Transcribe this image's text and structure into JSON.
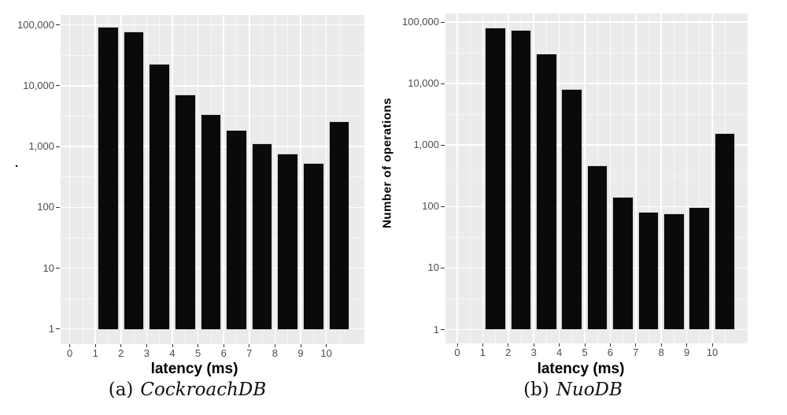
{
  "colors": {
    "background": "#ffffff",
    "panel": "#ebebeb",
    "grid": "#ffffff",
    "bar": "#0a0a0a",
    "tick_label": "#4d4d4d",
    "tick_mark": "#333333",
    "axis_title": "#000000"
  },
  "chart_data": [
    {
      "type": "bar",
      "caption": {
        "index": "(a)",
        "label": "CockroachDB"
      },
      "xlabel": "latency (ms)",
      "ylabel": ".",
      "yscale": "log10",
      "ylim": [
        1,
        100000
      ],
      "x_tick_labels": [
        "0",
        "1",
        "2",
        "3",
        "4",
        "5",
        "6",
        "7",
        "8",
        "9",
        "10"
      ],
      "y_tick_labels": [
        "1",
        "10",
        "100",
        "1,000",
        "10,000",
        "100,000"
      ],
      "grid": "major-minor",
      "legend_position": "none",
      "bin_start": 1,
      "bin_width": 1,
      "bar_rel_width": 0.76,
      "values": [
        90000,
        76000,
        22000,
        7000,
        3300,
        1800,
        1100,
        750,
        520,
        2500
      ]
    },
    {
      "type": "bar",
      "caption": {
        "index": "(b)",
        "label": "NuoDB"
      },
      "xlabel": "latency (ms)",
      "ylabel": "Number of operations",
      "yscale": "log10",
      "ylim": [
        1,
        100000
      ],
      "x_tick_labels": [
        "0",
        "1",
        "2",
        "3",
        "4",
        "5",
        "6",
        "7",
        "8",
        "9",
        "10"
      ],
      "y_tick_labels": [
        "1",
        "10",
        "100",
        "1,000",
        "10,000",
        "100,000"
      ],
      "grid": "major-minor",
      "legend_position": "none",
      "bin_start": 1,
      "bin_width": 1,
      "bar_rel_width": 0.76,
      "values": [
        80000,
        73000,
        30000,
        7900,
        450,
        140,
        80,
        75,
        95,
        1500
      ]
    }
  ]
}
